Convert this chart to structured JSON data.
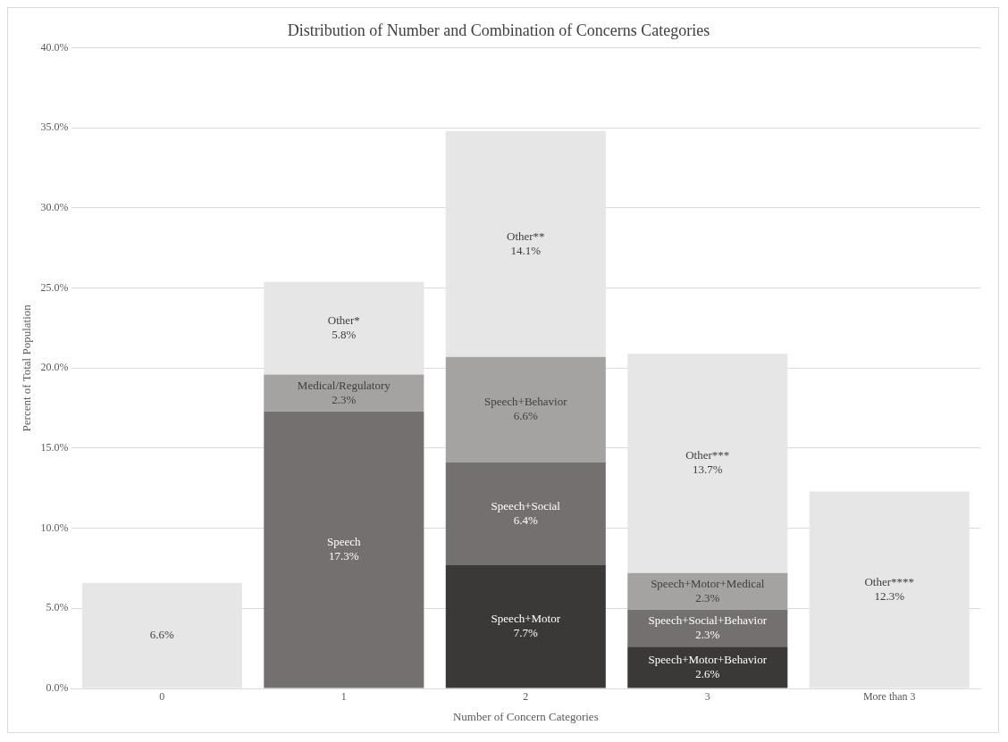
{
  "chart_data": {
    "type": "bar",
    "stacked": true,
    "title": "Distribution of Number and Combination of Concerns Categories",
    "xlabel": "Number of Concern Categories",
    "ylabel": "Percent of Total Population",
    "categories": [
      "0",
      "1",
      "2",
      "3",
      "More than 3"
    ],
    "series": [
      {
        "values": [
          6.6,
          17.3,
          7.7,
          2.6,
          12.3
        ],
        "colors": [
          "#e7e6e6",
          "#747070",
          "#3b3838",
          "#3b3838",
          "#e7e6e6"
        ],
        "value_labels": [
          "6.6%",
          "Speech\n17.3%",
          "Speech+Motor\n7.7%",
          "Speech+Motor+Behavior\n2.6%",
          "Other****\n12.3%"
        ]
      },
      {
        "values": [
          null,
          2.3,
          6.4,
          2.3,
          null
        ],
        "colors": [
          "#e7e6e6",
          "#a5a2a2",
          "#747070",
          "#747070",
          "#e7e6e6"
        ],
        "value_labels": [
          null,
          "Medical/Regulatory\n2.3%",
          "Speech+Social\n6.4%",
          "Speech+Social+Behavior\n2.3%",
          null
        ]
      },
      {
        "values": [
          null,
          5.8,
          6.6,
          2.3,
          null
        ],
        "colors": [
          "#e7e6e6",
          "#e7e6e6",
          "#a5a2a2",
          "#a5a2a2",
          "#e7e6e6"
        ],
        "value_labels": [
          null,
          "Other*\n5.8%",
          "Speech+Behavior\n6.6%",
          "Speech+Motor+Medical\n2.3%",
          null
        ]
      },
      {
        "values": [
          null,
          null,
          14.1,
          13.7,
          null
        ],
        "colors": [
          "#e7e6e6",
          "#e7e6e6",
          "#e7e6e6",
          "#e7e6e6",
          "#e7e6e6"
        ],
        "value_labels": [
          null,
          null,
          "Other**\n14.1%",
          "Other***\n13.7%",
          null
        ]
      }
    ],
    "ylim": [
      0,
      40
    ],
    "yticks": [
      {
        "value": 0,
        "label": "0.0%"
      },
      {
        "value": 5,
        "label": "5.0%"
      },
      {
        "value": 10,
        "label": "10.0%"
      },
      {
        "value": 15,
        "label": "15.0%"
      },
      {
        "value": 20,
        "label": "20.0%"
      },
      {
        "value": 25,
        "label": "25.0%"
      },
      {
        "value": 30,
        "label": "30.0%"
      },
      {
        "value": 35,
        "label": "35.0%"
      },
      {
        "value": 40,
        "label": "40.0%"
      }
    ],
    "grid": "y",
    "legend": false
  }
}
